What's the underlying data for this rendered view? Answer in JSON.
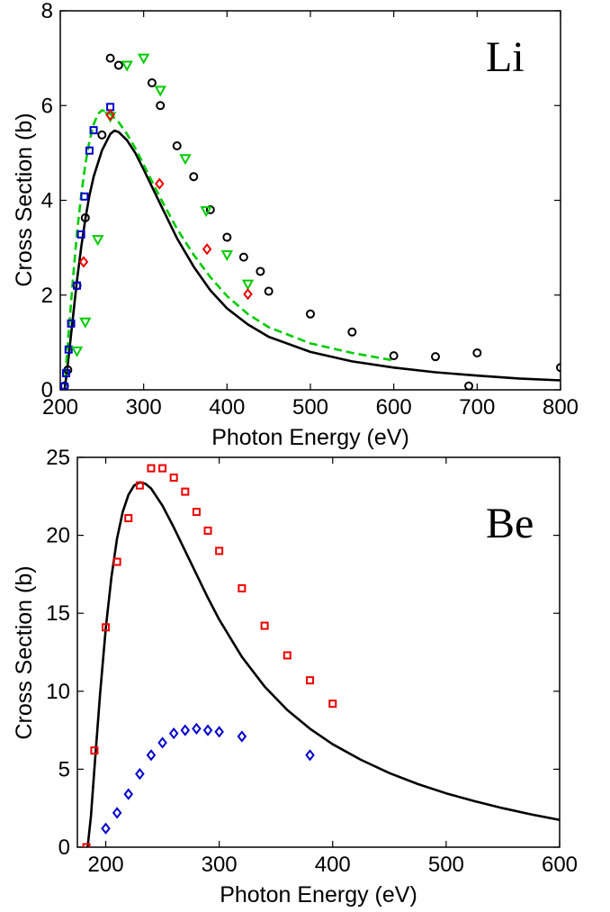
{
  "chart_data": [
    {
      "type": "scatter",
      "panel_label": "Li",
      "xlabel": "Photon Energy (eV)",
      "ylabel": "Cross Section (b)",
      "xlim": [
        200,
        800
      ],
      "ylim": [
        0,
        8
      ],
      "xticks": [
        200,
        300,
        400,
        500,
        600,
        700,
        800
      ],
      "yticks": [
        0,
        2,
        4,
        6,
        8
      ],
      "series": [
        {
          "kind": "line",
          "color": "#000000",
          "dash": "solid",
          "points": [
            [
              205,
              0.0
            ],
            [
              207,
              0.25
            ],
            [
              210,
              0.7
            ],
            [
              215,
              1.5
            ],
            [
              220,
              2.3
            ],
            [
              225,
              3.0
            ],
            [
              230,
              3.6
            ],
            [
              235,
              4.1
            ],
            [
              240,
              4.5
            ],
            [
              250,
              5.05
            ],
            [
              260,
              5.4
            ],
            [
              265,
              5.47
            ],
            [
              270,
              5.44
            ],
            [
              280,
              5.27
            ],
            [
              290,
              5.0
            ],
            [
              300,
              4.65
            ],
            [
              320,
              3.92
            ],
            [
              340,
              3.2
            ],
            [
              360,
              2.6
            ],
            [
              380,
              2.1
            ],
            [
              400,
              1.72
            ],
            [
              425,
              1.38
            ],
            [
              450,
              1.12
            ],
            [
              500,
              0.8
            ],
            [
              550,
              0.6
            ],
            [
              600,
              0.47
            ],
            [
              650,
              0.37
            ],
            [
              700,
              0.3
            ],
            [
              750,
              0.24
            ],
            [
              800,
              0.2
            ]
          ]
        },
        {
          "kind": "line",
          "color": "#00cc00",
          "dash": "dashed",
          "points": [
            [
              206,
              0.3
            ],
            [
              210,
              1.2
            ],
            [
              215,
              2.3
            ],
            [
              220,
              3.3
            ],
            [
              225,
              4.1
            ],
            [
              230,
              4.75
            ],
            [
              235,
              5.25
            ],
            [
              240,
              5.6
            ],
            [
              245,
              5.82
            ],
            [
              250,
              5.9
            ],
            [
              255,
              5.88
            ],
            [
              260,
              5.82
            ],
            [
              270,
              5.65
            ],
            [
              280,
              5.4
            ],
            [
              290,
              5.1
            ],
            [
              300,
              4.75
            ],
            [
              320,
              4.05
            ],
            [
              340,
              3.4
            ],
            [
              360,
              2.85
            ],
            [
              380,
              2.38
            ],
            [
              400,
              1.98
            ],
            [
              425,
              1.6
            ],
            [
              450,
              1.32
            ],
            [
              500,
              0.98
            ],
            [
              550,
              0.78
            ],
            [
              600,
              0.62
            ]
          ]
        },
        {
          "kind": "marker",
          "marker": "circle",
          "color": "#000000",
          "points": [
            [
              205,
              0.08
            ],
            [
              209,
              0.42
            ],
            [
              220,
              2.2
            ],
            [
              230,
              3.63
            ],
            [
              250,
              5.38
            ],
            [
              260,
              7.0
            ],
            [
              270,
              6.85
            ],
            [
              310,
              6.48
            ],
            [
              320,
              6.0
            ],
            [
              340,
              5.15
            ],
            [
              360,
              4.5
            ],
            [
              380,
              3.8
            ],
            [
              400,
              3.22
            ],
            [
              420,
              2.8
            ],
            [
              440,
              2.5
            ],
            [
              450,
              2.08
            ],
            [
              500,
              1.6
            ],
            [
              550,
              1.22
            ],
            [
              600,
              0.72
            ],
            [
              650,
              0.7
            ],
            [
              690,
              0.08
            ],
            [
              700,
              0.78
            ],
            [
              800,
              0.47
            ]
          ]
        },
        {
          "kind": "marker",
          "marker": "square",
          "color": "#0000cc",
          "points": [
            [
              205,
              0.07
            ],
            [
              207,
              0.35
            ],
            [
              210,
              0.85
            ],
            [
              213,
              1.4
            ],
            [
              220,
              2.2
            ],
            [
              225,
              3.28
            ],
            [
              229,
              4.08
            ],
            [
              235,
              5.05
            ],
            [
              240,
              5.48
            ],
            [
              260,
              5.97
            ]
          ]
        },
        {
          "kind": "marker",
          "marker": "triangle-down",
          "color": "#00cc00",
          "points": [
            [
              220,
              0.82
            ],
            [
              230,
              1.43
            ],
            [
              245,
              3.17
            ],
            [
              260,
              5.77
            ],
            [
              280,
              6.85
            ],
            [
              300,
              7.0
            ],
            [
              320,
              6.32
            ],
            [
              350,
              4.88
            ],
            [
              375,
              3.78
            ],
            [
              400,
              2.85
            ],
            [
              425,
              2.23
            ]
          ]
        },
        {
          "kind": "marker",
          "marker": "diamond",
          "color": "#ee0000",
          "points": [
            [
              228,
              2.7
            ],
            [
              260,
              5.8
            ],
            [
              319,
              4.35
            ],
            [
              376,
              2.97
            ],
            [
              425,
              2.02
            ]
          ]
        }
      ]
    },
    {
      "type": "scatter",
      "panel_label": "Be",
      "xlabel": "Photon Energy (eV)",
      "ylabel": "Cross Section (b)",
      "xlim": [
        175,
        600
      ],
      "ylim": [
        0,
        25
      ],
      "xticks": [
        200,
        300,
        400,
        500,
        600
      ],
      "yticks": [
        0,
        5,
        10,
        15,
        20,
        25
      ],
      "series": [
        {
          "kind": "line",
          "color": "#000000",
          "dash": "solid",
          "points": [
            [
              184,
              0.0
            ],
            [
              187,
              2.0
            ],
            [
              190,
              5.0
            ],
            [
              195,
              9.8
            ],
            [
              200,
              14.0
            ],
            [
              205,
              17.3
            ],
            [
              210,
              19.8
            ],
            [
              215,
              21.5
            ],
            [
              220,
              22.6
            ],
            [
              225,
              23.2
            ],
            [
              230,
              23.4
            ],
            [
              235,
              23.3
            ],
            [
              240,
              23.0
            ],
            [
              250,
              21.9
            ],
            [
              260,
              20.5
            ],
            [
              270,
              19.0
            ],
            [
              280,
              17.5
            ],
            [
              290,
              16.0
            ],
            [
              300,
              14.6
            ],
            [
              320,
              12.2
            ],
            [
              340,
              10.3
            ],
            [
              360,
              8.8
            ],
            [
              380,
              7.6
            ],
            [
              400,
              6.6
            ],
            [
              425,
              5.6
            ],
            [
              450,
              4.75
            ],
            [
              475,
              4.05
            ],
            [
              500,
              3.45
            ],
            [
              525,
              2.95
            ],
            [
              550,
              2.5
            ],
            [
              575,
              2.1
            ],
            [
              600,
              1.75
            ]
          ]
        },
        {
          "kind": "marker",
          "marker": "square",
          "color": "#ee0000",
          "points": [
            [
              183,
              0.0
            ],
            [
              190,
              6.2
            ],
            [
              200,
              14.1
            ],
            [
              210,
              18.3
            ],
            [
              220,
              21.1
            ],
            [
              230,
              23.2
            ],
            [
              240,
              24.3
            ],
            [
              250,
              24.3
            ],
            [
              260,
              23.7
            ],
            [
              270,
              22.8
            ],
            [
              280,
              21.5
            ],
            [
              290,
              20.3
            ],
            [
              300,
              19.0
            ],
            [
              320,
              16.6
            ],
            [
              340,
              14.2
            ],
            [
              360,
              12.3
            ],
            [
              380,
              10.7
            ],
            [
              400,
              9.2
            ]
          ]
        },
        {
          "kind": "marker",
          "marker": "diamond",
          "color": "#0000cc",
          "points": [
            [
              200,
              1.2
            ],
            [
              210,
              2.2
            ],
            [
              220,
              3.4
            ],
            [
              230,
              4.7
            ],
            [
              240,
              5.9
            ],
            [
              250,
              6.7
            ],
            [
              260,
              7.3
            ],
            [
              270,
              7.5
            ],
            [
              280,
              7.6
            ],
            [
              290,
              7.5
            ],
            [
              300,
              7.4
            ],
            [
              320,
              7.1
            ],
            [
              380,
              5.9
            ]
          ]
        }
      ]
    }
  ]
}
